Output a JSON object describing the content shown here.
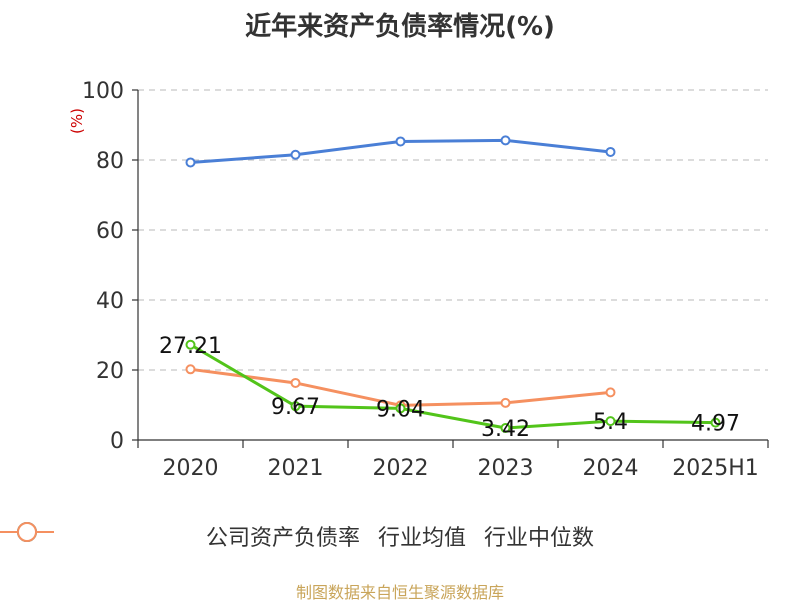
{
  "chart_data": {
    "type": "line",
    "title": "近年来资产负债率情况(%)",
    "ylabel": "(%)",
    "categories": [
      "2020",
      "2021",
      "2022",
      "2023",
      "2024",
      "2025H1"
    ],
    "ylim": [
      0,
      100
    ],
    "yticks": [
      0,
      20,
      40,
      60,
      80,
      100
    ],
    "grid": true,
    "legend_position": "bottom",
    "series": [
      {
        "name": "公司资产负债率",
        "color": "#52c41a",
        "values": [
          27.21,
          9.67,
          9.04,
          3.42,
          5.4,
          4.97
        ],
        "labels": [
          "27.21",
          "9.67",
          "9.04",
          "3.42",
          "5.4",
          "4.97"
        ]
      },
      {
        "name": "行业均值",
        "color": "#4a7fd6",
        "values": [
          79.3,
          81.5,
          85.3,
          85.6,
          82.3,
          null
        ]
      },
      {
        "name": "行业中位数",
        "color": "#f59060",
        "values": [
          20.2,
          16.3,
          9.9,
          10.6,
          13.6,
          null
        ]
      }
    ]
  },
  "source": "制图数据来自恒生聚源数据库"
}
